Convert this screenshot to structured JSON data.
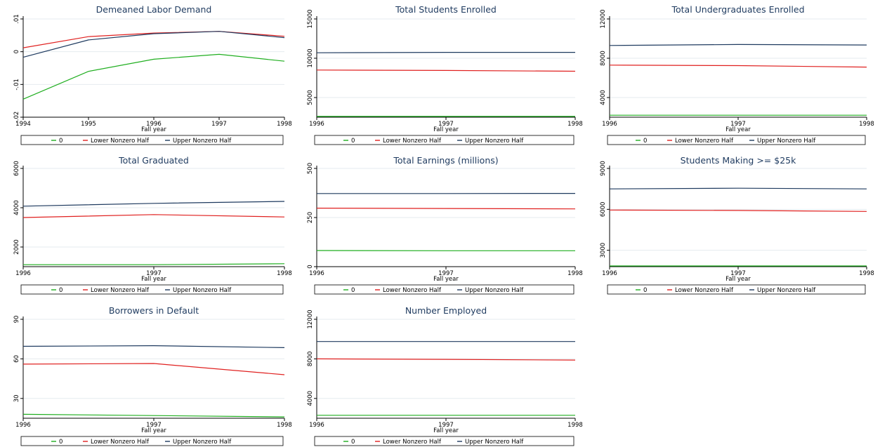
{
  "colors": {
    "series_0": "#1fae1f",
    "series_lower": "#e0201f",
    "series_upper": "#1e3a5f",
    "title": "#1e3a5f",
    "grid": "#e6ebef"
  },
  "chart_data": [
    {
      "type": "line",
      "title": "Demeaned Labor Demand",
      "xlabel": "Fall year",
      "ylabel": "",
      "x": [
        1994,
        1995,
        1996,
        1997,
        1998
      ],
      "x_ticks": [
        "1994",
        "1995",
        "1996",
        "1997",
        "1998"
      ],
      "ylim": [
        -0.02,
        0.01
      ],
      "y_ticks": [
        -0.02,
        -0.01,
        0,
        0.01
      ],
      "y_tick_labels": [
        "-.02",
        "-.01",
        "0",
        ".01"
      ],
      "series": [
        {
          "name": "0",
          "values": [
            -0.0145,
            -0.006,
            -0.0023,
            -0.0008,
            -0.0029
          ]
        },
        {
          "name": "Lower Nonzero Half",
          "values": [
            0.0012,
            0.0046,
            0.0057,
            0.0062,
            0.0047
          ]
        },
        {
          "name": "Upper Nonzero Half",
          "values": [
            -0.0017,
            0.0036,
            0.0055,
            0.0062,
            0.0043
          ]
        }
      ],
      "legend": "bottom"
    },
    {
      "type": "line",
      "title": "Total Students Enrolled",
      "xlabel": "Fall year",
      "ylabel": "",
      "x": [
        1996,
        1997,
        1998
      ],
      "x_ticks": [
        "1996",
        "1997",
        "1998"
      ],
      "ylim": [
        2500,
        15000
      ],
      "y_ticks": [
        5000,
        10000,
        15000
      ],
      "y_tick_labels": [
        "5000",
        "10000",
        "15000"
      ],
      "series": [
        {
          "name": "0",
          "values": [
            2600,
            2600,
            2600
          ]
        },
        {
          "name": "Lower Nonzero Half",
          "values": [
            8500,
            8450,
            8350
          ]
        },
        {
          "name": "Upper Nonzero Half",
          "values": [
            10700,
            10750,
            10750
          ]
        }
      ],
      "legend": "bottom"
    },
    {
      "type": "line",
      "title": "Total Undergraduates Enrolled",
      "xlabel": "Fall year",
      "ylabel": "",
      "x": [
        1996,
        1997,
        1998
      ],
      "x_ticks": [
        "1996",
        "1997",
        "1998"
      ],
      "ylim": [
        2000,
        12000
      ],
      "y_ticks": [
        4000,
        8000,
        12000
      ],
      "y_tick_labels": [
        "4000",
        "8000",
        "12000"
      ],
      "series": [
        {
          "name": "0",
          "values": [
            2200,
            2200,
            2200
          ]
        },
        {
          "name": "Lower Nonzero Half",
          "values": [
            7300,
            7250,
            7100
          ]
        },
        {
          "name": "Upper Nonzero Half",
          "values": [
            9300,
            9400,
            9350
          ]
        }
      ],
      "legend": "bottom"
    },
    {
      "type": "line",
      "title": "Total Graduated",
      "xlabel": "Fall year",
      "ylabel": "",
      "x": [
        1996,
        1997,
        1998
      ],
      "x_ticks": [
        "1996",
        "1997",
        "1998"
      ],
      "ylim": [
        1000,
        6000
      ],
      "y_ticks": [
        2000,
        4000,
        6000
      ],
      "y_tick_labels": [
        "2000",
        "4000",
        "6000"
      ],
      "series": [
        {
          "name": "0",
          "values": [
            1100,
            1100,
            1150
          ]
        },
        {
          "name": "Lower Nonzero Half",
          "values": [
            3500,
            3650,
            3530
          ]
        },
        {
          "name": "Upper Nonzero Half",
          "values": [
            4080,
            4220,
            4320
          ]
        }
      ],
      "legend": "bottom"
    },
    {
      "type": "line",
      "title": "Total Earnings (millions)",
      "xlabel": "Fall year",
      "ylabel": "",
      "x": [
        1996,
        1997,
        1998
      ],
      "x_ticks": [
        "1996",
        "1997",
        "1998"
      ],
      "ylim": [
        0,
        500
      ],
      "y_ticks": [
        0,
        250,
        500
      ],
      "y_tick_labels": [
        "0",
        "250",
        "500"
      ],
      "series": [
        {
          "name": "0",
          "values": [
            82,
            81,
            81
          ]
        },
        {
          "name": "Lower Nonzero Half",
          "values": [
            298,
            296,
            294
          ]
        },
        {
          "name": "Upper Nonzero Half",
          "values": [
            372,
            372,
            373
          ]
        }
      ],
      "legend": "bottom"
    },
    {
      "type": "line",
      "title": "Students Making >= $25k",
      "xlabel": "Fall year",
      "ylabel": "",
      "x": [
        1996,
        1997,
        1998
      ],
      "x_ticks": [
        "1996",
        "1997",
        "1998"
      ],
      "ylim": [
        1800,
        9000
      ],
      "y_ticks": [
        3000,
        6000,
        9000
      ],
      "y_tick_labels": [
        "3000",
        "6000",
        "9000"
      ],
      "series": [
        {
          "name": "0",
          "values": [
            1850,
            1850,
            1850
          ]
        },
        {
          "name": "Lower Nonzero Half",
          "values": [
            5950,
            5920,
            5850
          ]
        },
        {
          "name": "Upper Nonzero Half",
          "values": [
            7500,
            7550,
            7500
          ]
        }
      ],
      "legend": "bottom"
    },
    {
      "type": "line",
      "title": "Borrowers in Default",
      "xlabel": "Fall year",
      "ylabel": "",
      "x": [
        1996,
        1997,
        1998
      ],
      "x_ticks": [
        "1996",
        "1997",
        "1998"
      ],
      "ylim": [
        15,
        90
      ],
      "y_ticks": [
        30,
        60,
        90
      ],
      "y_tick_labels": [
        "30",
        "60",
        "90"
      ],
      "series": [
        {
          "name": "0",
          "values": [
            18,
            17,
            16
          ]
        },
        {
          "name": "Lower Nonzero Half",
          "values": [
            56,
            56.5,
            48
          ]
        },
        {
          "name": "Upper Nonzero Half",
          "values": [
            69.5,
            70,
            68.5
          ]
        }
      ],
      "legend": "bottom"
    },
    {
      "type": "line",
      "title": "Number Employed",
      "xlabel": "Fall year",
      "ylabel": "",
      "x": [
        1996,
        1997,
        1998
      ],
      "x_ticks": [
        "1996",
        "1997",
        "1998"
      ],
      "ylim": [
        2000,
        12000
      ],
      "y_ticks": [
        4000,
        8000,
        12000
      ],
      "y_tick_labels": [
        "4000",
        "8000",
        "12000"
      ],
      "series": [
        {
          "name": "0",
          "values": [
            2300,
            2300,
            2300
          ]
        },
        {
          "name": "Lower Nonzero Half",
          "values": [
            8000,
            7950,
            7880
          ]
        },
        {
          "name": "Upper Nonzero Half",
          "values": [
            9750,
            9750,
            9750
          ]
        }
      ],
      "legend": "bottom"
    }
  ]
}
